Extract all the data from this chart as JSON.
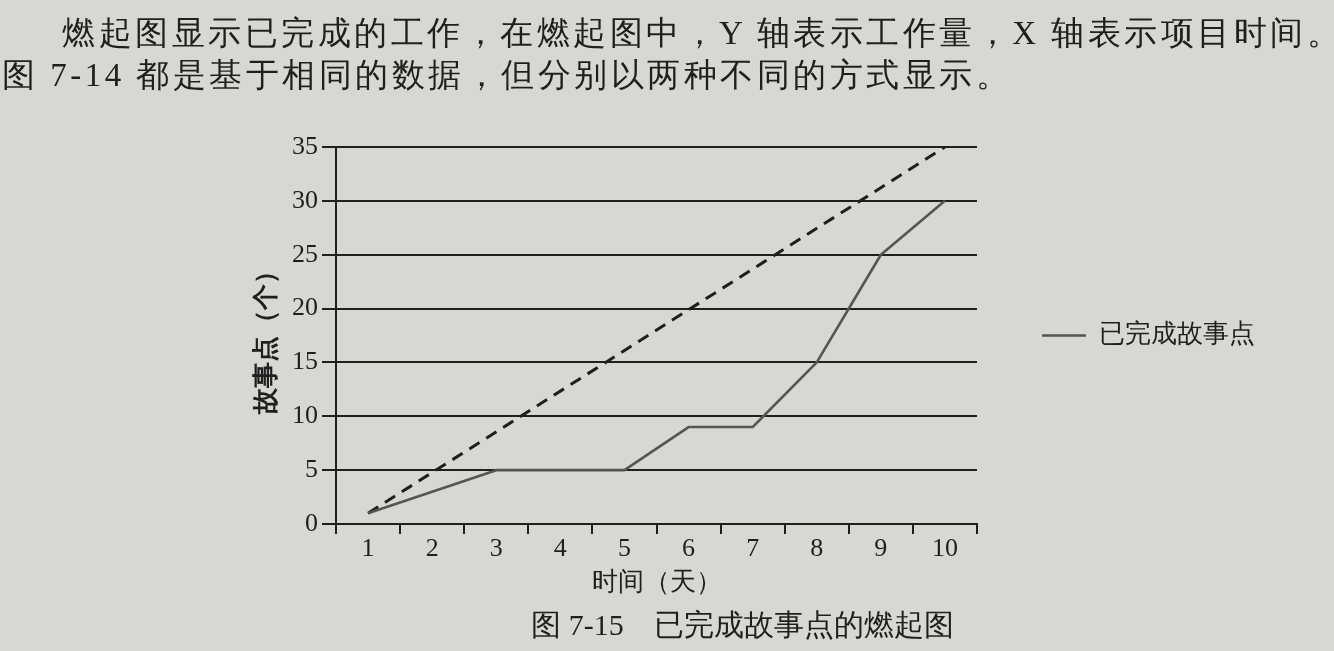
{
  "chart_data": {
    "type": "line",
    "title": "图 7-15　已完成故事点的燃起图",
    "xlabel": "时间（天）",
    "ylabel": "故事点（个）",
    "annotations": [
      "燃起图显示已完成的工作，在燃起图中，Y 轴表示工作量，X 轴表示项目时间。",
      "图 7-14 都是基于相同的数据，但分别以两种不同的方式显示。"
    ],
    "x": [
      1,
      2,
      3,
      4,
      5,
      6,
      7,
      8,
      9,
      10
    ],
    "series": [
      {
        "name": "已完成故事点",
        "color": "#555555",
        "values": [
          1,
          3,
          5,
          5,
          5,
          9,
          9,
          15,
          25,
          30
        ],
        "line_style": "solid"
      },
      {
        "color": "#1e1e1e",
        "x": [
          1,
          10
        ],
        "values": [
          1,
          35
        ],
        "line_style": "dashed"
      }
    ],
    "xlim": [
      0.5,
      10.5
    ],
    "xticks": [
      {
        "value": 0.5,
        "label": null
      },
      1,
      {
        "value": 1.5,
        "label": null
      },
      2,
      {
        "value": 2.5,
        "label": null
      },
      3,
      {
        "value": 3.5,
        "label": null
      },
      4,
      {
        "value": 4.5,
        "label": null
      },
      5,
      {
        "value": 5.5,
        "label": null
      },
      6,
      {
        "value": 6.5,
        "label": null
      },
      7,
      {
        "value": 7.5,
        "label": null
      },
      8,
      {
        "value": 8.5,
        "label": null
      },
      9,
      {
        "value": 9.5,
        "label": null
      },
      10,
      {
        "value": 10.5,
        "label": null
      }
    ],
    "ylim": [
      0,
      35
    ],
    "yticks": [
      0,
      5,
      10,
      15,
      20,
      25,
      30,
      35
    ],
    "grid": "y",
    "legend": "right",
    "marker": "none"
  }
}
